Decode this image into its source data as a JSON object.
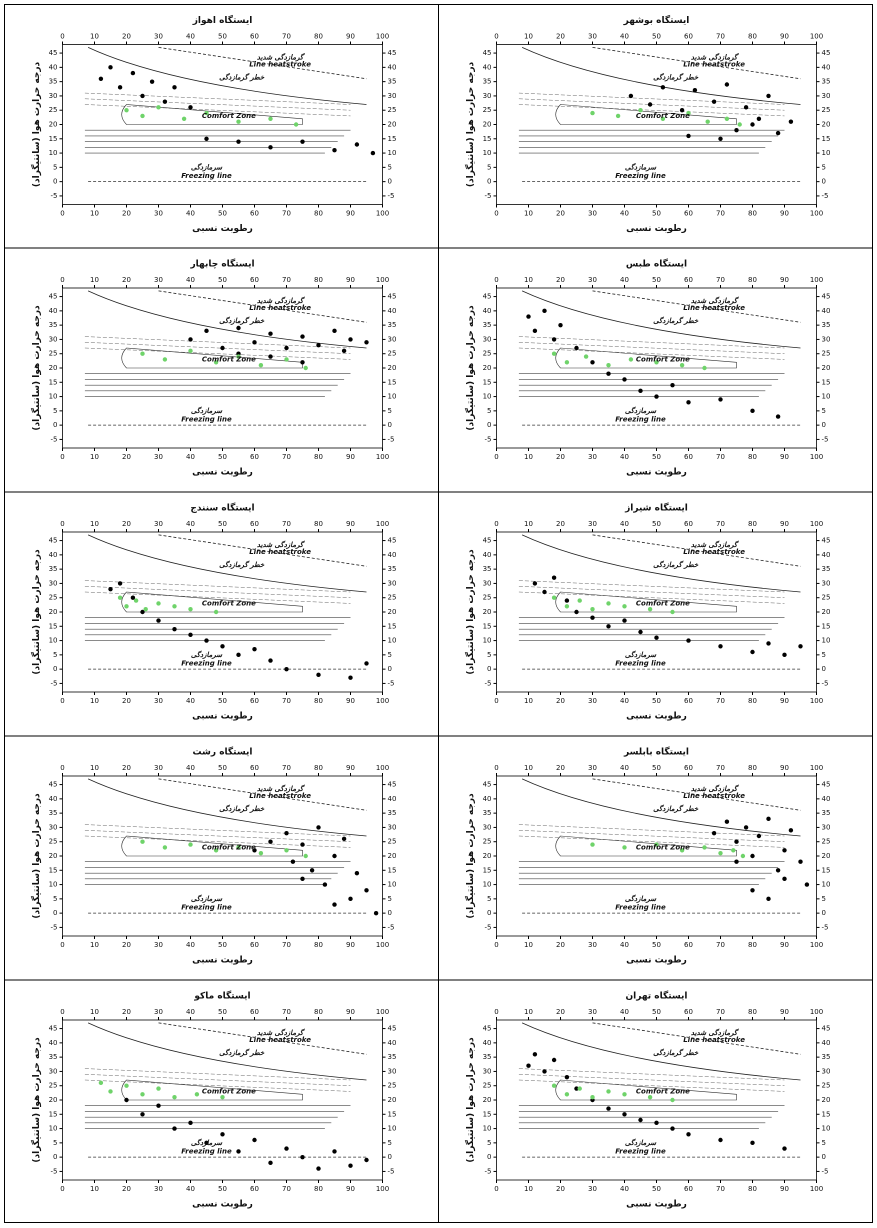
{
  "chart_data": [
    {
      "type": "scatter",
      "title": "ایستگاه اهواز",
      "xlabel": "رطوبت نسبی",
      "ylabel": "درجه حرارت هوا (سانتیگراد)",
      "annotations": [
        "گرمازدگی شدید",
        "Line heatstroke",
        "خطر گرمازدگی",
        "Comfort Zone",
        "سرمازدگی",
        "Freezing line"
      ],
      "xlim": [
        0,
        100
      ],
      "xticks": [
        0,
        10,
        20,
        30,
        40,
        50,
        60,
        70,
        80,
        90,
        100
      ],
      "ylim": [
        -8,
        48
      ],
      "yticks": [
        -5,
        0,
        5,
        10,
        15,
        20,
        25,
        30,
        35,
        40,
        45
      ],
      "series": [
        {
          "color": "#000000",
          "x": [
            12,
            15,
            18,
            22,
            25,
            28,
            32,
            35,
            40,
            45,
            55,
            65,
            75,
            85,
            92,
            97
          ],
          "values": [
            36,
            40,
            33,
            38,
            30,
            35,
            28,
            33,
            26,
            15,
            14,
            12,
            14,
            11,
            13,
            10
          ]
        },
        {
          "color": "#6fd36a",
          "x": [
            20,
            25,
            30,
            38,
            45,
            55,
            65,
            73
          ],
          "values": [
            25,
            23,
            26,
            22,
            24,
            21,
            22,
            20
          ]
        }
      ]
    },
    {
      "type": "scatter",
      "title": "ایستگاه بوشهر",
      "xlabel": "رطوبت نسبی",
      "ylabel": "درجه حرارت هوا (سانتیگراد)",
      "annotations": [
        "گرمازدگی شدید",
        "Line heatstroke",
        "خطر گرمازدگی",
        "Comfort Zone",
        "سرمازدگی",
        "Freezing line"
      ],
      "xlim": [
        0,
        100
      ],
      "xticks": [
        0,
        10,
        20,
        30,
        40,
        50,
        60,
        70,
        80,
        90,
        100
      ],
      "ylim": [
        -8,
        48
      ],
      "yticks": [
        -5,
        0,
        5,
        10,
        15,
        20,
        25,
        30,
        35,
        40,
        45
      ],
      "series": [
        {
          "color": "#000000",
          "x": [
            42,
            48,
            52,
            58,
            62,
            68,
            72,
            75,
            78,
            82,
            85,
            88,
            92,
            60,
            70,
            80
          ],
          "values": [
            30,
            27,
            33,
            25,
            32,
            28,
            34,
            18,
            26,
            22,
            30,
            17,
            21,
            16,
            15,
            20
          ]
        },
        {
          "color": "#6fd36a",
          "x": [
            30,
            38,
            45,
            52,
            60,
            66,
            72,
            76
          ],
          "values": [
            24,
            23,
            25,
            22,
            24,
            21,
            22,
            20
          ]
        }
      ]
    },
    {
      "type": "scatter",
      "title": "ایستگاه چابهار",
      "xlabel": "رطوبت نسبی",
      "ylabel": "درجه حرارت هوا (سانتیگراد)",
      "annotations": [
        "گرمازدگی شدید",
        "Line heatstroke",
        "خطر گرمازدگی",
        "Comfort Zone",
        "سرمازدگی",
        "Freezing line"
      ],
      "xlim": [
        0,
        100
      ],
      "xticks": [
        0,
        10,
        20,
        30,
        40,
        50,
        60,
        70,
        80,
        90,
        100
      ],
      "ylim": [
        -8,
        48
      ],
      "yticks": [
        -5,
        0,
        5,
        10,
        15,
        20,
        25,
        30,
        35,
        40,
        45
      ],
      "series": [
        {
          "color": "#000000",
          "x": [
            40,
            45,
            50,
            55,
            60,
            65,
            70,
            75,
            80,
            85,
            90,
            95,
            55,
            65,
            75,
            88
          ],
          "values": [
            30,
            33,
            27,
            34,
            29,
            32,
            27,
            31,
            28,
            33,
            30,
            29,
            25,
            24,
            22,
            26
          ]
        },
        {
          "color": "#6fd36a",
          "x": [
            25,
            32,
            40,
            48,
            55,
            62,
            70,
            76
          ],
          "values": [
            25,
            23,
            26,
            22,
            24,
            21,
            23,
            20
          ]
        }
      ]
    },
    {
      "type": "scatter",
      "title": "ایستگاه طبس",
      "xlabel": "رطوبت نسبی",
      "ylabel": "درجه حرارت هوا (سانتیگراد)",
      "annotations": [
        "گرمازدگی شدید",
        "Line heatstroke",
        "خطر گرمازدگی",
        "Comfort Zone",
        "سرمازدگی",
        "Freezing line"
      ],
      "xlim": [
        0,
        100
      ],
      "xticks": [
        0,
        10,
        20,
        30,
        40,
        50,
        60,
        70,
        80,
        90,
        100
      ],
      "ylim": [
        -8,
        48
      ],
      "yticks": [
        -5,
        0,
        5,
        10,
        15,
        20,
        25,
        30,
        35,
        40,
        45
      ],
      "series": [
        {
          "color": "#000000",
          "x": [
            10,
            12,
            15,
            18,
            20,
            25,
            30,
            35,
            40,
            45,
            50,
            55,
            60,
            70,
            80,
            88
          ],
          "values": [
            38,
            33,
            40,
            30,
            35,
            27,
            22,
            18,
            16,
            12,
            10,
            14,
            8,
            9,
            5,
            3
          ]
        },
        {
          "color": "#6fd36a",
          "x": [
            18,
            22,
            28,
            35,
            42,
            50,
            58,
            65
          ],
          "values": [
            25,
            22,
            24,
            21,
            23,
            22,
            21,
            20
          ]
        }
      ]
    },
    {
      "type": "scatter",
      "title": "ایستگاه سنندج",
      "xlabel": "رطوبت نسبی",
      "ylabel": "درجه حرارت هوا (سانتیگراد)",
      "annotations": [
        "گرمازدگی شدید",
        "Line heatstroke",
        "خطر گرمازدگی",
        "Comfort Zone",
        "سرمازدگی",
        "Freezing line"
      ],
      "xlim": [
        0,
        100
      ],
      "xticks": [
        0,
        10,
        20,
        30,
        40,
        50,
        60,
        70,
        80,
        90,
        100
      ],
      "ylim": [
        -8,
        48
      ],
      "yticks": [
        -5,
        0,
        5,
        10,
        15,
        20,
        25,
        30,
        35,
        40,
        45
      ],
      "series": [
        {
          "color": "#000000",
          "x": [
            15,
            18,
            22,
            25,
            30,
            35,
            40,
            45,
            50,
            55,
            60,
            65,
            70,
            80,
            90,
            95
          ],
          "values": [
            28,
            30,
            25,
            20,
            17,
            14,
            12,
            10,
            8,
            5,
            7,
            3,
            0,
            -2,
            -3,
            2
          ]
        },
        {
          "color": "#6fd36a",
          "x": [
            18,
            20,
            23,
            26,
            30,
            35,
            40,
            48
          ],
          "values": [
            25,
            22,
            24,
            21,
            23,
            22,
            21,
            20
          ]
        }
      ]
    },
    {
      "type": "scatter",
      "title": "ایستگاه شیراز",
      "xlabel": "رطوبت نسبی",
      "ylabel": "درجه حرارت هوا (سانتیگراد)",
      "annotations": [
        "گرمازدگی شدید",
        "Line heatstroke",
        "خطر گرمازدگی",
        "Comfort Zone",
        "سرمازدگی",
        "Freezing line"
      ],
      "xlim": [
        0,
        100
      ],
      "xticks": [
        0,
        10,
        20,
        30,
        40,
        50,
        60,
        70,
        80,
        90,
        100
      ],
      "ylim": [
        -8,
        48
      ],
      "yticks": [
        -5,
        0,
        5,
        10,
        15,
        20,
        25,
        30,
        35,
        40,
        45
      ],
      "series": [
        {
          "color": "#000000",
          "x": [
            12,
            15,
            18,
            22,
            25,
            30,
            35,
            40,
            45,
            50,
            60,
            70,
            80,
            85,
            90,
            95
          ],
          "values": [
            30,
            27,
            32,
            24,
            20,
            18,
            15,
            17,
            13,
            11,
            10,
            8,
            6,
            9,
            5,
            8
          ]
        },
        {
          "color": "#6fd36a",
          "x": [
            18,
            22,
            26,
            30,
            35,
            40,
            48,
            55
          ],
          "values": [
            25,
            22,
            24,
            21,
            23,
            22,
            21,
            20
          ]
        }
      ]
    },
    {
      "type": "scatter",
      "title": "ایستگاه رشت",
      "xlabel": "رطوبت نسبی",
      "ylabel": "درجه حرارت هوا (سانتیگراد)",
      "annotations": [
        "گرمازدگی شدید",
        "Line heatstroke",
        "خطر گرمازدگی",
        "Comfort Zone",
        "سرمازدگی",
        "Freezing line"
      ],
      "xlim": [
        0,
        100
      ],
      "xticks": [
        0,
        10,
        20,
        30,
        40,
        50,
        60,
        70,
        80,
        90,
        100
      ],
      "ylim": [
        -8,
        48
      ],
      "yticks": [
        -5,
        0,
        5,
        10,
        15,
        20,
        25,
        30,
        35,
        40,
        45
      ],
      "series": [
        {
          "color": "#000000",
          "x": [
            60,
            65,
            70,
            72,
            75,
            78,
            80,
            82,
            85,
            88,
            90,
            92,
            95,
            98,
            85,
            75
          ],
          "values": [
            22,
            25,
            28,
            18,
            24,
            15,
            30,
            10,
            20,
            26,
            5,
            14,
            8,
            0,
            3,
            12
          ]
        },
        {
          "color": "#6fd36a",
          "x": [
            25,
            32,
            40,
            48,
            55,
            62,
            70,
            76
          ],
          "values": [
            25,
            23,
            24,
            22,
            23,
            21,
            22,
            20
          ]
        }
      ]
    },
    {
      "type": "scatter",
      "title": "ایستگاه بابلسر",
      "xlabel": "رطوبت نسبی",
      "ylabel": "درجه حرارت هوا (سانتیگراد)",
      "annotations": [
        "گرمازدگی شدید",
        "Line heatstroke",
        "خطر گرمازدگی",
        "Comfort Zone",
        "سرمازدگی",
        "Freezing line"
      ],
      "xlim": [
        0,
        100
      ],
      "xticks": [
        0,
        10,
        20,
        30,
        40,
        50,
        60,
        70,
        80,
        90,
        100
      ],
      "ylim": [
        -8,
        48
      ],
      "yticks": [
        -5,
        0,
        5,
        10,
        15,
        20,
        25,
        30,
        35,
        40,
        45
      ],
      "series": [
        {
          "color": "#000000",
          "x": [
            68,
            72,
            75,
            78,
            80,
            82,
            85,
            88,
            90,
            92,
            95,
            97,
            80,
            85,
            90,
            75
          ],
          "values": [
            28,
            32,
            25,
            30,
            20,
            27,
            33,
            15,
            22,
            29,
            18,
            10,
            8,
            5,
            12,
            18
          ]
        },
        {
          "color": "#6fd36a",
          "x": [
            30,
            40,
            50,
            58,
            65,
            70,
            74,
            77
          ],
          "values": [
            24,
            23,
            24,
            22,
            23,
            21,
            22,
            20
          ]
        }
      ]
    },
    {
      "type": "scatter",
      "title": "ایستگاه ماکو",
      "xlabel": "رطوبت نسبی",
      "ylabel": "درجه حرارت هوا (سانتیگراد)",
      "annotations": [
        "گرمازدگی شدید",
        "Line heatstroke",
        "خطر گرمازدگی",
        "Comfort Zone",
        "سرمازدگی",
        "Freezing line"
      ],
      "xlim": [
        0,
        100
      ],
      "xticks": [
        0,
        10,
        20,
        30,
        40,
        50,
        60,
        70,
        80,
        90,
        100
      ],
      "ylim": [
        -8,
        48
      ],
      "yticks": [
        -5,
        0,
        5,
        10,
        15,
        20,
        25,
        30,
        35,
        40,
        45
      ],
      "series": [
        {
          "color": "#000000",
          "x": [
            20,
            25,
            30,
            35,
            40,
            45,
            50,
            55,
            60,
            65,
            70,
            75,
            80,
            85,
            90,
            95
          ],
          "values": [
            20,
            15,
            18,
            10,
            12,
            5,
            8,
            2,
            6,
            -2,
            3,
            0,
            -4,
            2,
            -3,
            -1
          ]
        },
        {
          "color": "#6fd36a",
          "x": [
            12,
            15,
            20,
            25,
            30,
            35,
            42,
            50
          ],
          "values": [
            26,
            23,
            25,
            22,
            24,
            21,
            22,
            21
          ]
        }
      ]
    },
    {
      "type": "scatter",
      "title": "ایستگاه تهران",
      "xlabel": "رطوبت نسبی",
      "ylabel": "درجه حرارت هوا (سانتیگراد)",
      "annotations": [
        "گرمازدگی شدید",
        "Line heatstroke",
        "خطر گرمازدگی",
        "Comfort Zone",
        "سرمازدگی",
        "Freezing line"
      ],
      "xlim": [
        0,
        100
      ],
      "xticks": [
        0,
        10,
        20,
        30,
        40,
        50,
        60,
        70,
        80,
        90,
        100
      ],
      "ylim": [
        -8,
        48
      ],
      "yticks": [
        -5,
        0,
        5,
        10,
        15,
        20,
        25,
        30,
        35,
        40,
        45
      ],
      "series": [
        {
          "color": "#000000",
          "x": [
            10,
            12,
            15,
            18,
            22,
            25,
            30,
            35,
            40,
            45,
            50,
            55,
            60,
            70,
            80,
            90
          ],
          "values": [
            32,
            36,
            30,
            34,
            28,
            24,
            20,
            17,
            15,
            13,
            12,
            10,
            8,
            6,
            5,
            3
          ]
        },
        {
          "color": "#6fd36a",
          "x": [
            18,
            22,
            26,
            30,
            35,
            40,
            48,
            55
          ],
          "values": [
            25,
            22,
            24,
            21,
            23,
            22,
            21,
            20
          ]
        }
      ]
    }
  ]
}
